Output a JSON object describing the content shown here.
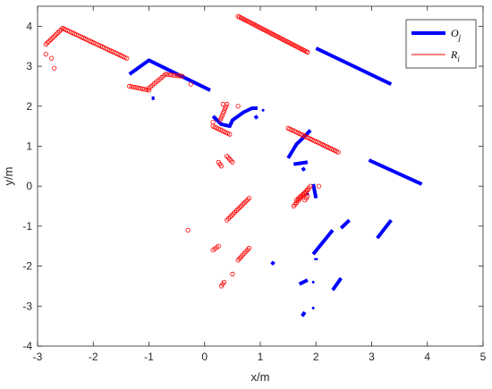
{
  "chart_data": {
    "type": "scatter",
    "xlabel": "x/m",
    "ylabel": "y/m",
    "xlim": [
      -3,
      5
    ],
    "ylim": [
      -4,
      4.5
    ],
    "xticks": [
      -3,
      -2,
      -1,
      0,
      1,
      2,
      3,
      4,
      5
    ],
    "yticks": [
      -4,
      -3,
      -2,
      -1,
      0,
      1,
      2,
      3,
      4
    ],
    "grid": false,
    "legend_position": "top-right",
    "colors": {
      "O": "#0000ff",
      "R": "#ff0000",
      "axis": "#262626"
    },
    "series": [
      {
        "name": "O_j",
        "legend_main": "O",
        "legend_sub": "j",
        "marker": "thick-line",
        "segments": [
          [
            [
              -1.35,
              2.8
            ],
            [
              -1.0,
              3.15
            ],
            [
              0.1,
              2.4
            ]
          ],
          [
            [
              2.0,
              3.45
            ],
            [
              3.35,
              2.55
            ]
          ],
          [
            [
              0.15,
              1.75
            ],
            [
              0.3,
              1.55
            ],
            [
              0.45,
              1.5
            ],
            [
              0.5,
              1.65
            ],
            [
              0.7,
              1.85
            ],
            [
              0.85,
              1.95
            ],
            [
              0.95,
              1.95
            ]
          ],
          [
            [
              2.95,
              0.65
            ],
            [
              3.9,
              0.05
            ]
          ],
          [
            [
              1.5,
              0.7
            ],
            [
              1.65,
              1.05
            ],
            [
              1.8,
              1.25
            ],
            [
              1.9,
              1.4
            ]
          ],
          [
            [
              1.6,
              0.55
            ],
            [
              1.85,
              0.6
            ]
          ],
          [
            [
              1.95,
              0.05
            ],
            [
              2.0,
              -0.3
            ]
          ],
          [
            [
              1.95,
              -1.7
            ],
            [
              2.3,
              -1.1
            ]
          ],
          [
            [
              3.1,
              -1.3
            ],
            [
              3.35,
              -0.85
            ]
          ],
          [
            [
              2.6,
              -0.85
            ],
            [
              2.45,
              -1.05
            ]
          ],
          [
            [
              1.7,
              -2.45
            ],
            [
              1.85,
              -2.35
            ]
          ],
          [
            [
              2.3,
              -2.6
            ],
            [
              2.45,
              -2.3
            ]
          ],
          [
            [
              1.75,
              -3.25
            ],
            [
              1.8,
              -3.15
            ]
          ],
          [
            [
              1.2,
              -1.9
            ],
            [
              1.25,
              -1.95
            ]
          ],
          [
            [
              -0.95,
              2.2
            ],
            [
              -0.9,
              2.2
            ]
          ],
          [
            [
              0.9,
              1.7
            ],
            [
              0.95,
              1.75
            ]
          ],
          [
            [
              1.75,
              0.4
            ],
            [
              1.8,
              0.45
            ]
          ],
          [
            [
              2.0,
              -1.8
            ],
            [
              2.0,
              -1.85
            ]
          ]
        ],
        "dots": [
          [
            1.05,
            1.9
          ],
          [
            1.95,
            -2.4
          ],
          [
            1.95,
            -3.05
          ],
          [
            1.85,
            -0.2
          ]
        ]
      },
      {
        "name": "R_i",
        "legend_main": "R",
        "legend_sub": "i",
        "marker": "circle",
        "lines": [
          {
            "from": [
              -2.85,
              3.55
            ],
            "to": [
              -2.55,
              3.95
            ],
            "n": 12
          },
          {
            "from": [
              -2.55,
              3.95
            ],
            "to": [
              -1.4,
              3.2
            ],
            "n": 38
          },
          {
            "from": [
              -1.35,
              2.5
            ],
            "to": [
              -1.0,
              2.4
            ],
            "n": 10
          },
          {
            "from": [
              -1.0,
              2.45
            ],
            "to": [
              -0.7,
              2.8
            ],
            "n": 10
          },
          {
            "from": [
              -0.7,
              2.8
            ],
            "to": [
              -0.4,
              2.75
            ],
            "n": 8
          },
          {
            "from": [
              0.6,
              4.25
            ],
            "to": [
              1.85,
              3.35
            ],
            "n": 50
          },
          {
            "from": [
              0.15,
              1.5
            ],
            "to": [
              0.45,
              1.3
            ],
            "n": 10
          },
          {
            "from": [
              0.28,
              1.65
            ],
            "to": [
              0.4,
              2.05
            ],
            "n": 8
          },
          {
            "from": [
              1.5,
              1.45
            ],
            "to": [
              2.4,
              0.85
            ],
            "n": 32
          },
          {
            "from": [
              0.4,
              0.75
            ],
            "to": [
              0.5,
              0.6
            ],
            "n": 5
          },
          {
            "from": [
              0.25,
              0.6
            ],
            "to": [
              0.3,
              0.5
            ],
            "n": 3
          },
          {
            "from": [
              0.4,
              -0.85
            ],
            "to": [
              0.8,
              -0.3
            ],
            "n": 15
          },
          {
            "from": [
              1.6,
              -0.5
            ],
            "to": [
              1.9,
              0.0
            ],
            "n": 12
          },
          {
            "from": [
              1.65,
              -0.35
            ],
            "to": [
              1.85,
              -0.1
            ],
            "n": 8
          },
          {
            "from": [
              0.6,
              -1.85
            ],
            "to": [
              0.8,
              -1.55
            ],
            "n": 8
          },
          {
            "from": [
              0.15,
              -1.6
            ],
            "to": [
              0.25,
              -1.5
            ],
            "n": 4
          },
          {
            "from": [
              0.3,
              -2.5
            ],
            "to": [
              0.35,
              -2.4
            ],
            "n": 3
          },
          {
            "from": [
              1.8,
              -0.35
            ],
            "to": [
              1.85,
              -0.25
            ],
            "n": 3
          }
        ],
        "points": [
          [
            -2.85,
            3.3
          ],
          [
            -2.75,
            3.2
          ],
          [
            -2.7,
            2.95
          ],
          [
            -0.3,
            -1.1
          ],
          [
            0.5,
            -2.2
          ],
          [
            0.15,
            1.6
          ],
          [
            0.33,
            2.05
          ],
          [
            0.6,
            2.0
          ],
          [
            -0.25,
            2.55
          ],
          [
            2.05,
            0.0
          ]
        ]
      }
    ]
  }
}
